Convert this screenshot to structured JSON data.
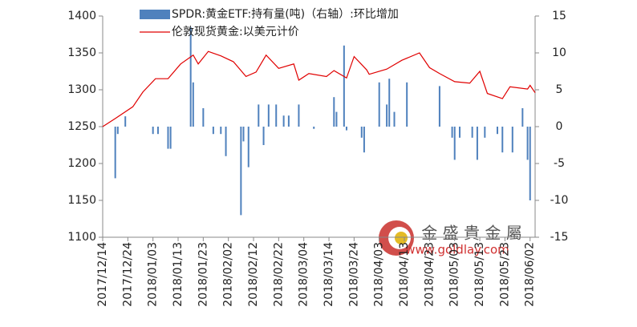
{
  "chart_data": {
    "type": "bar-line",
    "legend": "top",
    "annotations": [
      "金 盛 貴 金 屬",
      "www.goldlay.com"
    ],
    "xlim": [
      "2017/12/14",
      "2018/06/04"
    ],
    "xticks": [
      "2017/12/14",
      "2017/12/24",
      "2018/01/03",
      "2018/01/13",
      "2018/01/23",
      "2018/02/02",
      "2018/02/12",
      "2018/02/22",
      "2018/03/04",
      "2018/03/14",
      "2018/03/24",
      "2018/04/03",
      "2018/04/13",
      "2018/04/23",
      "2018/05/03",
      "2018/05/13",
      "2018/05/23",
      "2018/06/02"
    ],
    "ylim": [
      1100,
      1400
    ],
    "yticks": [
      1100,
      1150,
      1200,
      1250,
      1300,
      1350,
      1400
    ],
    "y2lim": [
      -15,
      15
    ],
    "y2ticks": [
      -15,
      -10,
      -5,
      0,
      5,
      10,
      15
    ],
    "series": [
      {
        "name": "SPDR:黄金ETF:持有量(吨)（右轴）:环比增加",
        "type": "bar",
        "axis": "y2",
        "color": "#4f81bd",
        "x": [
          "2017/12/19",
          "2017/12/20",
          "2017/12/23",
          "2018/01/03",
          "2018/01/05",
          "2018/01/09",
          "2018/01/10",
          "2018/01/18",
          "2018/01/19",
          "2018/01/23",
          "2018/01/27",
          "2018/01/30",
          "2018/02/01",
          "2018/02/07",
          "2018/02/08",
          "2018/02/10",
          "2018/02/14",
          "2018/02/16",
          "2018/02/18",
          "2018/02/21",
          "2018/02/24",
          "2018/02/26",
          "2018/03/02",
          "2018/03/08",
          "2018/03/16",
          "2018/03/17",
          "2018/03/20",
          "2018/03/21",
          "2018/03/27",
          "2018/03/28",
          "2018/04/03",
          "2018/04/06",
          "2018/04/07",
          "2018/04/09",
          "2018/04/14",
          "2018/04/27",
          "2018/05/02",
          "2018/05/03",
          "2018/05/05",
          "2018/05/10",
          "2018/05/12",
          "2018/05/15",
          "2018/05/20",
          "2018/05/22",
          "2018/05/26",
          "2018/05/30",
          "2018/06/01",
          "2018/06/02"
        ],
        "values": [
          -7,
          -1,
          1.4,
          -1,
          -1,
          -3,
          -3,
          13.5,
          6,
          2.5,
          -1,
          -1,
          -4,
          -12,
          -2,
          -5.5,
          3,
          -2.5,
          3,
          3,
          1.5,
          1.5,
          3,
          -0.3,
          4,
          2,
          11,
          -0.5,
          -1.5,
          -3.5,
          6,
          3,
          6.5,
          2,
          6,
          5.5,
          -1.5,
          -4.5,
          -1.5,
          -1.5,
          -4.5,
          -1.5,
          -1,
          -3.5,
          -3.5,
          2.5,
          -4.5,
          -10
        ]
      },
      {
        "name": "伦敦现货黄金:以美元计价",
        "type": "line",
        "color": "#e00000",
        "x": [
          "2017/12/14",
          "2017/12/19",
          "2017/12/26",
          "2017/12/30",
          "2018/01/04",
          "2018/01/09",
          "2018/01/14",
          "2018/01/19",
          "2018/01/21",
          "2018/01/25",
          "2018/01/30",
          "2018/02/04",
          "2018/02/09",
          "2018/02/13",
          "2018/02/17",
          "2018/02/22",
          "2018/02/28",
          "2018/03/02",
          "2018/03/06",
          "2018/03/13",
          "2018/03/16",
          "2018/03/21",
          "2018/03/24",
          "2018/03/29",
          "2018/03/30",
          "2018/04/06",
          "2018/04/12",
          "2018/04/19",
          "2018/04/23",
          "2018/04/27",
          "2018/05/03",
          "2018/05/09",
          "2018/05/13",
          "2018/05/16",
          "2018/05/22",
          "2018/05/25",
          "2018/06/01",
          "2018/06/02",
          "2018/06/04"
        ],
        "values": [
          1250,
          1261,
          1277,
          1297,
          1315,
          1315,
          1335,
          1347,
          1335,
          1352,
          1346,
          1338,
          1318,
          1324,
          1347,
          1329,
          1335,
          1313,
          1322,
          1318,
          1326,
          1316,
          1345,
          1327,
          1321,
          1328,
          1340,
          1350,
          1330,
          1322,
          1311,
          1309,
          1325,
          1295,
          1288,
          1304,
          1301,
          1306,
          1296
        ]
      }
    ]
  }
}
